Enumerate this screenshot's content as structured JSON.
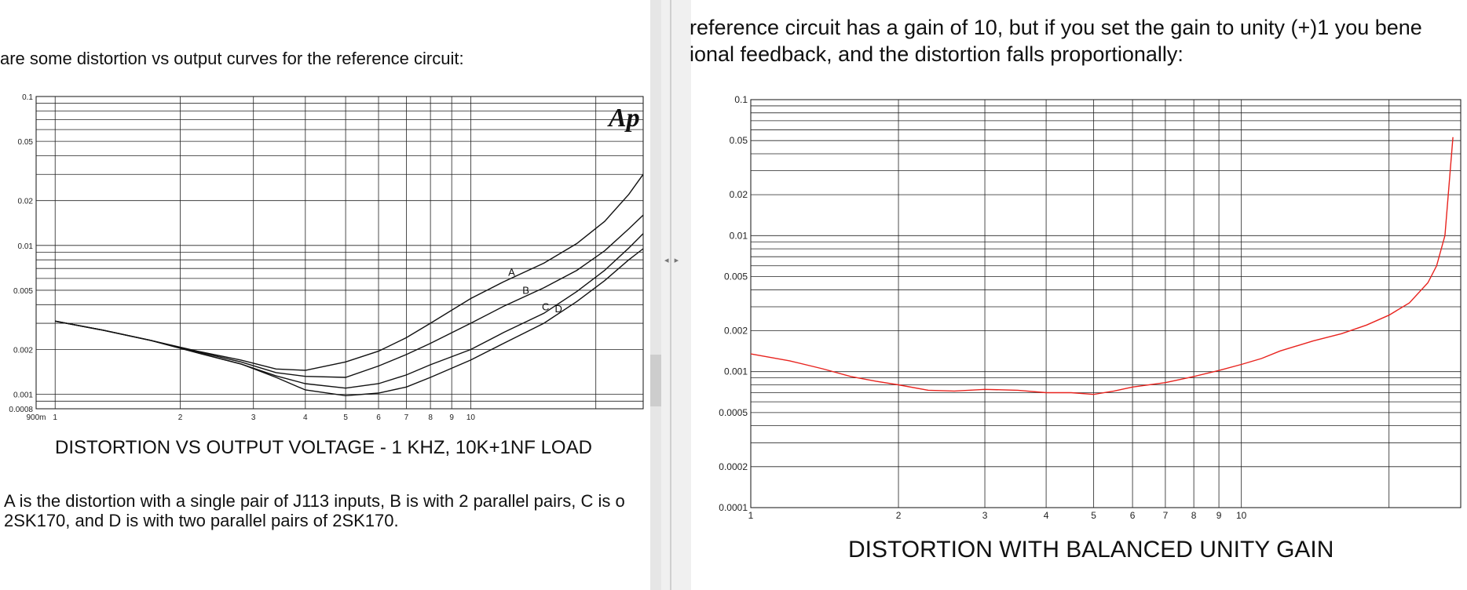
{
  "text": {
    "left_intro": "are some distortion vs output curves for the reference circuit:",
    "right_line1": "reference circuit has a gain of 10, but if you set the gain to unity (+)1 you bene",
    "right_line2": "ional feedback, and the distortion falls proportionally:",
    "caption_line1": "A is the distortion with a single pair of J113 inputs, B is with 2 parallel pairs, C is o",
    "caption_line2": "2SK170, and D is with two parallel pairs of 2SK170."
  },
  "divider": {
    "arrow_left": "◂",
    "arrow_right": "▸"
  },
  "chart_data": [
    {
      "type": "line",
      "title": "DISTORTION VS OUTPUT VOLTAGE - 1 KHZ, 10K+1NF LOAD",
      "logo": "Ap",
      "xscale": "log",
      "yscale": "log",
      "xlim": [
        0.9,
        26
      ],
      "ylim": [
        0.0008,
        0.1
      ],
      "x_tick_labels": [
        "900m",
        "1",
        "2",
        "3",
        "4",
        "5",
        "6",
        "7",
        "8",
        "9",
        "10"
      ],
      "y_tick_labels": [
        "0.1",
        "0.05",
        "0.02",
        "0.01",
        "0.005",
        "0.002",
        "0.001",
        "0.0008"
      ],
      "grid": true,
      "series": [
        {
          "name": "A",
          "x": [
            1.0,
            1.3,
            1.7,
            2.2,
            2.8,
            3.4,
            4.0,
            5.0,
            6.0,
            7.0,
            8.0,
            10.0,
            12.0,
            15.0,
            18.0,
            21.0,
            24.0,
            26.0
          ],
          "y": [
            0.0031,
            0.0027,
            0.0023,
            0.00195,
            0.0017,
            0.00148,
            0.00145,
            0.00165,
            0.00195,
            0.0024,
            0.003,
            0.0044,
            0.0057,
            0.0076,
            0.0103,
            0.0145,
            0.022,
            0.03
          ]
        },
        {
          "name": "B",
          "x": [
            1.0,
            1.3,
            1.7,
            2.2,
            2.8,
            3.4,
            4.0,
            5.0,
            6.0,
            7.0,
            8.0,
            10.0,
            12.0,
            15.0,
            18.0,
            21.0,
            24.0,
            26.0
          ],
          "y": [
            0.0031,
            0.0027,
            0.0023,
            0.00193,
            0.00165,
            0.0014,
            0.00132,
            0.0013,
            0.00155,
            0.00185,
            0.0022,
            0.003,
            0.0039,
            0.0052,
            0.0068,
            0.0092,
            0.0129,
            0.016
          ]
        },
        {
          "name": "C",
          "x": [
            1.0,
            1.3,
            1.7,
            2.2,
            2.8,
            3.4,
            4.0,
            5.0,
            6.0,
            7.0,
            8.0,
            10.0,
            12.0,
            15.0,
            18.0,
            21.0,
            24.0,
            26.0
          ],
          "y": [
            0.0031,
            0.0027,
            0.0023,
            0.0019,
            0.0016,
            0.00133,
            0.00118,
            0.0011,
            0.00118,
            0.00135,
            0.00158,
            0.002,
            0.0026,
            0.0035,
            0.0049,
            0.0068,
            0.0096,
            0.012
          ]
        },
        {
          "name": "D",
          "x": [
            1.0,
            1.3,
            1.7,
            2.2,
            2.8,
            3.4,
            4.0,
            5.0,
            6.0,
            7.0,
            8.0,
            10.0,
            12.0,
            15.0,
            18.0,
            21.0,
            24.0,
            26.0
          ],
          "y": [
            0.0031,
            0.0027,
            0.0023,
            0.0019,
            0.0016,
            0.0013,
            0.00107,
            0.00098,
            0.00102,
            0.00112,
            0.0013,
            0.0017,
            0.0022,
            0.003,
            0.0042,
            0.0058,
            0.008,
            0.0095
          ]
        }
      ]
    },
    {
      "type": "line",
      "title": "DISTORTION WITH BALANCED UNITY GAIN",
      "xscale": "log",
      "yscale": "log",
      "xlim": [
        1,
        28
      ],
      "ylim": [
        0.0001,
        0.1
      ],
      "x_tick_labels": [
        "1",
        "2",
        "3",
        "4",
        "5",
        "6",
        "7",
        "8",
        "9",
        "10"
      ],
      "y_tick_labels": [
        "0.1",
        "0.05",
        "0.02",
        "0.01",
        "0.005",
        "0.002",
        "0.001",
        "0.0005",
        "0.0002",
        "0.0001"
      ],
      "grid": true,
      "series_color": "#e8231e",
      "series": [
        {
          "x": [
            1.0,
            1.2,
            1.4,
            1.6,
            1.8,
            2.0,
            2.3,
            2.6,
            3.0,
            3.5,
            4.0,
            4.5,
            5.0,
            5.5,
            6.0,
            7.0,
            8.0,
            9.0,
            10.0,
            11.0,
            12.0,
            14.0,
            16.0,
            18.0,
            20.0,
            22.0,
            24.0,
            25.0,
            26.0,
            27.0
          ],
          "y": [
            0.00135,
            0.0012,
            0.00105,
            0.00092,
            0.00085,
            0.0008,
            0.00073,
            0.00072,
            0.00074,
            0.00073,
            0.0007,
            0.0007,
            0.00068,
            0.00072,
            0.00077,
            0.00083,
            0.00092,
            0.00102,
            0.00113,
            0.00125,
            0.00142,
            0.00168,
            0.0019,
            0.0022,
            0.0026,
            0.0032,
            0.0045,
            0.006,
            0.01,
            0.053
          ]
        }
      ]
    }
  ]
}
